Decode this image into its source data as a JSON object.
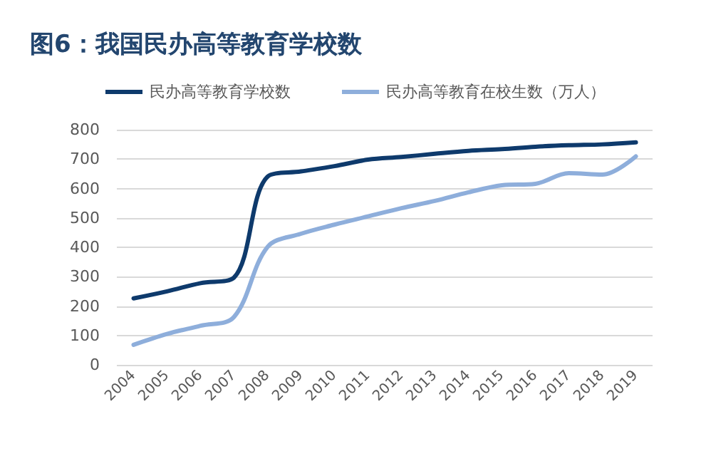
{
  "chart_data": {
    "type": "line",
    "title": "图6：我国民办高等教育学校数",
    "categories": [
      "2004",
      "2005",
      "2006",
      "2007",
      "2008",
      "2009",
      "2010",
      "2011",
      "2012",
      "2013",
      "2014",
      "2015",
      "2016",
      "2017",
      "2018",
      "2019"
    ],
    "series": [
      {
        "name": "民办高等教育学校数",
        "color": "#0e3a6c",
        "values": [
          226,
          250,
          278,
          297,
          640,
          658,
          676,
          698,
          707,
          718,
          728,
          734,
          742,
          747,
          750,
          757
        ]
      },
      {
        "name": "民办高等教育在校生数（万人）",
        "color": "#8eaedb",
        "values": [
          68,
          105,
          133,
          163,
          401,
          446,
          477,
          505,
          533,
          558,
          587,
          611,
          616,
          652,
          647,
          709
        ]
      }
    ],
    "ylim": [
      0,
      800
    ],
    "yticks": [
      0,
      100,
      200,
      300,
      400,
      500,
      600,
      700,
      800
    ],
    "grid": "y",
    "legend": "top",
    "marker": "none",
    "line_style": "solid"
  }
}
